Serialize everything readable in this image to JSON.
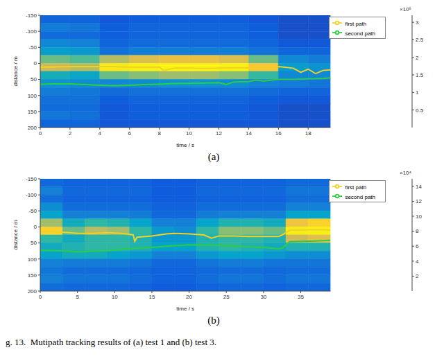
{
  "caption": "g. 13.  Mutipath tracking results of (a) test 1 and (b) test 3.",
  "chart_data": [
    {
      "type": "heatmap",
      "caption": "(a)",
      "x_label": "time / s",
      "y_label": "distance / m",
      "xlim": [
        0,
        19.5
      ],
      "xticks": [
        0,
        2,
        4,
        6,
        8,
        10,
        12,
        14,
        16,
        18
      ],
      "ylim": [
        200,
        -150
      ],
      "yticks": [
        -150,
        -100,
        -50,
        0,
        50,
        100,
        150,
        200
      ],
      "grid": false,
      "legend": "upper right",
      "heatmap": {
        "x_edges": [
          0,
          2,
          4,
          6,
          8,
          10,
          12,
          14,
          16,
          18,
          19.5
        ],
        "y_edges": [
          -150,
          -125,
          -100,
          -75,
          -50,
          -25,
          0,
          25,
          50,
          75,
          100,
          125,
          150,
          175,
          200
        ],
        "cells": [
          [
            40000,
            40000,
            30000,
            35000,
            35000,
            35000,
            35000,
            30000,
            25000,
            25000
          ],
          [
            60000,
            55000,
            35000,
            40000,
            40000,
            40000,
            40000,
            35000,
            25000,
            25000
          ],
          [
            45000,
            45000,
            35000,
            40000,
            40000,
            40000,
            40000,
            35000,
            25000,
            25000
          ],
          [
            70000,
            65000,
            40000,
            45000,
            45000,
            45000,
            45000,
            40000,
            30000,
            30000
          ],
          [
            90000,
            85000,
            50000,
            60000,
            60000,
            60000,
            60000,
            50000,
            40000,
            40000
          ],
          [
            150000,
            140000,
            180000,
            200000,
            210000,
            210000,
            200000,
            150000,
            70000,
            60000
          ],
          [
            190000,
            180000,
            270000,
            290000,
            300000,
            300000,
            290000,
            220000,
            90000,
            80000
          ],
          [
            110000,
            100000,
            150000,
            160000,
            170000,
            170000,
            160000,
            130000,
            70000,
            70000
          ],
          [
            80000,
            75000,
            70000,
            75000,
            80000,
            80000,
            75000,
            65000,
            60000,
            55000
          ],
          [
            60000,
            55000,
            45000,
            50000,
            50000,
            50000,
            50000,
            45000,
            40000,
            40000
          ],
          [
            50000,
            50000,
            35000,
            40000,
            40000,
            40000,
            40000,
            35000,
            30000,
            30000
          ],
          [
            45000,
            45000,
            30000,
            35000,
            35000,
            35000,
            35000,
            30000,
            25000,
            25000
          ],
          [
            55000,
            50000,
            30000,
            35000,
            35000,
            35000,
            35000,
            30000,
            25000,
            25000
          ],
          [
            40000,
            40000,
            30000,
            30000,
            30000,
            30000,
            30000,
            30000,
            25000,
            25000
          ]
        ]
      },
      "colorbar": {
        "range": [
          0,
          320000
        ],
        "ticks": [
          {
            "value": 50000,
            "label": "0.5"
          },
          {
            "value": 100000,
            "label": "1"
          },
          {
            "value": 150000,
            "label": "1.5"
          },
          {
            "value": 200000,
            "label": "2"
          },
          {
            "value": 250000,
            "label": "2.5"
          },
          {
            "value": 300000,
            "label": "3"
          }
        ],
        "multiplier": "×10⁵"
      },
      "series": [
        {
          "name": "first path",
          "color": "#f2d024",
          "type": "line",
          "x": [
            0,
            1,
            2,
            3,
            4,
            5,
            6,
            7,
            8,
            8.3,
            9,
            10,
            11,
            12,
            13,
            14,
            15,
            16,
            17,
            17.5,
            18,
            18.5,
            19,
            19.5
          ],
          "values": [
            12,
            11,
            10,
            10,
            10,
            10,
            12,
            12,
            12,
            22,
            15,
            15,
            16,
            15,
            14,
            14,
            12,
            10,
            15,
            28,
            18,
            32,
            22,
            20
          ]
        },
        {
          "name": "second path",
          "color": "#2ecc40",
          "type": "line",
          "x": [
            0,
            1,
            2,
            3,
            4,
            5,
            6,
            7,
            8,
            9,
            10,
            11,
            12,
            12.5,
            13,
            14,
            14.5,
            15,
            16,
            17,
            18,
            19,
            19.5
          ],
          "values": [
            65,
            64,
            64,
            66,
            68,
            70,
            68,
            66,
            65,
            63,
            62,
            61,
            60,
            66,
            58,
            57,
            52,
            55,
            50,
            50,
            48,
            47,
            45
          ]
        }
      ]
    },
    {
      "type": "heatmap",
      "caption": "(b)",
      "x_label": "time / s",
      "y_label": "distance / m",
      "xlim": [
        0,
        39
      ],
      "xticks": [
        0,
        5,
        10,
        15,
        20,
        25,
        30,
        35
      ],
      "ylim": [
        200,
        -150
      ],
      "yticks": [
        -150,
        -100,
        -50,
        0,
        50,
        100,
        150,
        200
      ],
      "grid": false,
      "legend": "upper right",
      "heatmap": {
        "x_edges": [
          0,
          3,
          6,
          9,
          12,
          15,
          18,
          21,
          24,
          27,
          30,
          33,
          36,
          39
        ],
        "y_edges": [
          -150,
          -125,
          -100,
          -75,
          -50,
          -25,
          0,
          25,
          50,
          75,
          100,
          125,
          150,
          175,
          200
        ],
        "cells": [
          [
            20000,
            18000,
            18000,
            18000,
            18000,
            15000,
            15000,
            18000,
            18000,
            18000,
            18000,
            20000,
            20000
          ],
          [
            30000,
            20000,
            20000,
            20000,
            20000,
            15000,
            15000,
            20000,
            20000,
            20000,
            20000,
            25000,
            25000
          ],
          [
            22000,
            18000,
            18000,
            18000,
            18000,
            15000,
            15000,
            18000,
            18000,
            18000,
            18000,
            22000,
            22000
          ],
          [
            35000,
            22000,
            22000,
            22000,
            22000,
            18000,
            18000,
            22000,
            22000,
            22000,
            22000,
            30000,
            30000
          ],
          [
            45000,
            30000,
            30000,
            30000,
            28000,
            20000,
            20000,
            28000,
            30000,
            30000,
            30000,
            45000,
            45000
          ],
          [
            80000,
            50000,
            60000,
            55000,
            45000,
            30000,
            30000,
            45000,
            55000,
            55000,
            50000,
            100000,
            110000
          ],
          [
            110000,
            70000,
            85000,
            80000,
            60000,
            40000,
            35000,
            60000,
            75000,
            75000,
            70000,
            130000,
            135000
          ],
          [
            60000,
            50000,
            60000,
            60000,
            55000,
            40000,
            40000,
            55000,
            60000,
            60000,
            55000,
            90000,
            95000
          ],
          [
            50000,
            55000,
            60000,
            60000,
            55000,
            45000,
            45000,
            55000,
            60000,
            55000,
            50000,
            55000,
            55000
          ],
          [
            45000,
            50000,
            50000,
            45000,
            40000,
            30000,
            30000,
            40000,
            45000,
            45000,
            40000,
            35000,
            35000
          ],
          [
            30000,
            28000,
            28000,
            28000,
            25000,
            20000,
            20000,
            25000,
            28000,
            28000,
            25000,
            25000,
            25000
          ],
          [
            25000,
            22000,
            22000,
            22000,
            20000,
            18000,
            18000,
            20000,
            22000,
            22000,
            20000,
            22000,
            22000
          ],
          [
            30000,
            25000,
            25000,
            25000,
            22000,
            18000,
            18000,
            22000,
            25000,
            25000,
            22000,
            25000,
            25000
          ],
          [
            22000,
            20000,
            20000,
            20000,
            18000,
            15000,
            15000,
            18000,
            20000,
            20000,
            18000,
            20000,
            20000
          ]
        ]
      },
      "colorbar": {
        "range": [
          0,
          150000
        ],
        "ticks": [
          {
            "value": 20000,
            "label": "2"
          },
          {
            "value": 40000,
            "label": "4"
          },
          {
            "value": 60000,
            "label": "6"
          },
          {
            "value": 80000,
            "label": "8"
          },
          {
            "value": 100000,
            "label": "10"
          },
          {
            "value": 120000,
            "label": "12"
          },
          {
            "value": 140000,
            "label": "14"
          }
        ],
        "multiplier": "×10⁴"
      },
      "series": [
        {
          "name": "first path",
          "color": "#f2d024",
          "type": "line",
          "x": [
            0,
            2,
            4,
            5,
            7,
            9,
            11,
            12.5,
            12.7,
            13,
            15,
            17,
            18,
            20,
            22,
            23,
            24,
            26,
            28,
            30,
            32,
            32.5,
            33.5,
            35,
            37,
            39
          ],
          "values": [
            15,
            15,
            18,
            20,
            20,
            18,
            20,
            25,
            45,
            32,
            28,
            22,
            20,
            22,
            25,
            35,
            28,
            28,
            30,
            30,
            30,
            25,
            10,
            10,
            8,
            10
          ]
        },
        {
          "name": "second path",
          "color": "#2ecc40",
          "type": "line",
          "x": [
            0,
            2,
            4,
            5,
            7,
            9,
            11,
            13,
            15,
            17,
            20,
            23,
            25,
            28,
            30,
            32,
            32.5,
            33.5,
            35,
            37,
            39
          ],
          "values": [
            72,
            74,
            76,
            78,
            76,
            74,
            70,
            66,
            64,
            60,
            56,
            57,
            58,
            62,
            64,
            68,
            66,
            46,
            45,
            44,
            42
          ]
        }
      ]
    }
  ]
}
